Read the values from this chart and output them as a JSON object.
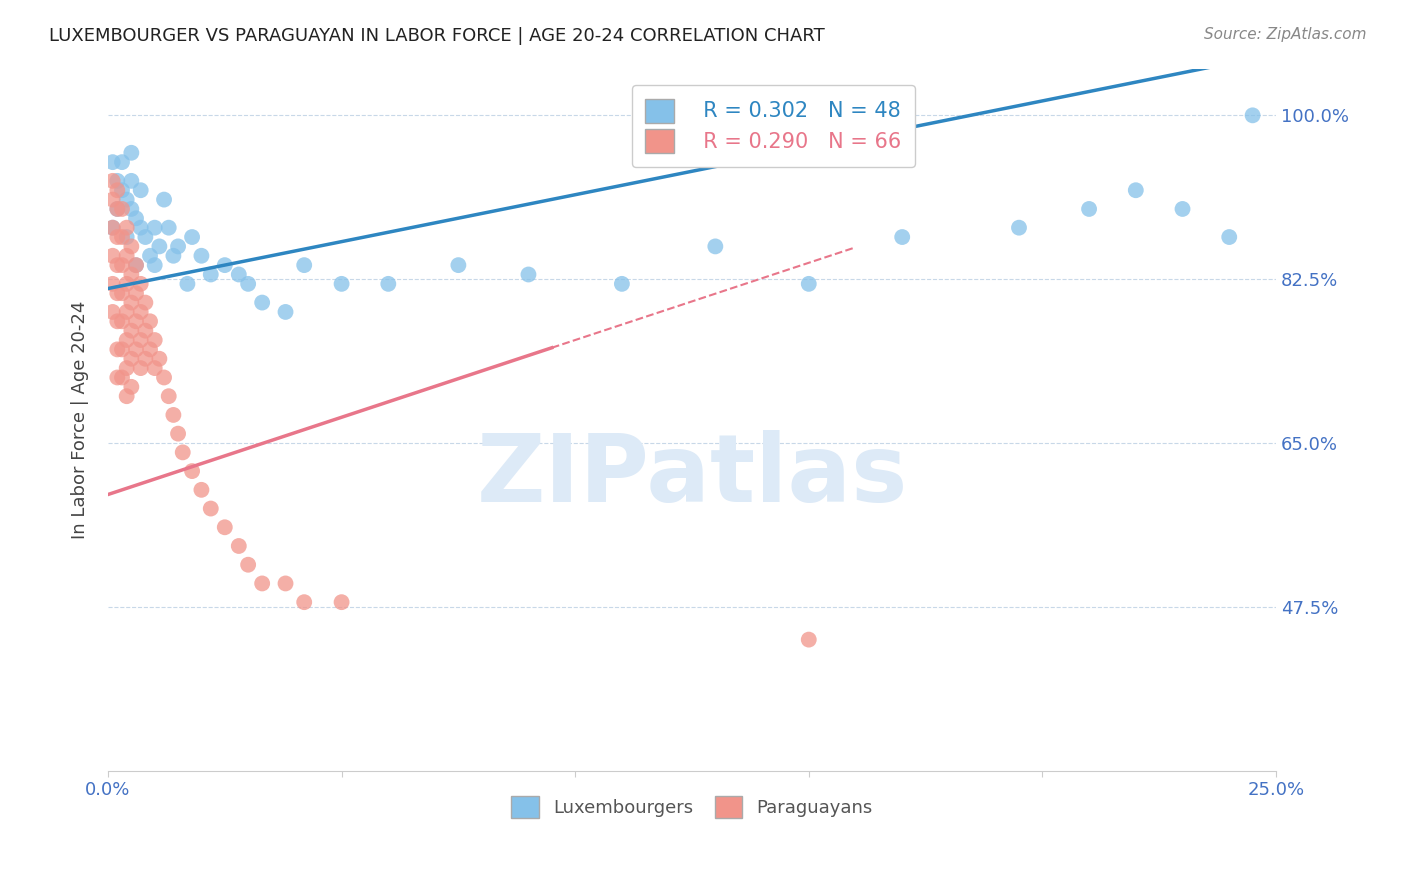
{
  "title": "LUXEMBOURGER VS PARAGUAYAN IN LABOR FORCE | AGE 20-24 CORRELATION CHART",
  "source": "Source: ZipAtlas.com",
  "ylabel": "In Labor Force | Age 20-24",
  "xlim": [
    0.0,
    0.25
  ],
  "ylim": [
    0.3,
    1.05
  ],
  "xtick_positions": [
    0.0,
    0.05,
    0.1,
    0.15,
    0.2,
    0.25
  ],
  "xticklabels": [
    "0.0%",
    "",
    "",
    "",
    "",
    "25.0%"
  ],
  "ytick_positions": [
    0.475,
    0.65,
    0.825,
    1.0
  ],
  "ytick_labels": [
    "47.5%",
    "65.0%",
    "82.5%",
    "100.0%"
  ],
  "blue_R": 0.302,
  "blue_N": 48,
  "pink_R": 0.29,
  "pink_N": 66,
  "blue_color": "#85c1e9",
  "pink_color": "#f1948a",
  "blue_line_color": "#2e86c1",
  "pink_line_color": "#e8768a",
  "grid_color": "#c8d8e8",
  "watermark": "ZIPatlas",
  "watermark_color": "#ddeaf7",
  "background_color": "#ffffff",
  "blue_trendline": [
    0.815,
    1.002
  ],
  "pink_trendline": [
    0.595,
    1.65
  ],
  "blue_scatter_x": [
    0.001,
    0.001,
    0.002,
    0.002,
    0.003,
    0.003,
    0.004,
    0.004,
    0.005,
    0.005,
    0.005,
    0.006,
    0.006,
    0.007,
    0.007,
    0.008,
    0.009,
    0.01,
    0.01,
    0.011,
    0.012,
    0.013,
    0.014,
    0.015,
    0.017,
    0.018,
    0.02,
    0.022,
    0.025,
    0.028,
    0.03,
    0.033,
    0.038,
    0.042,
    0.05,
    0.06,
    0.075,
    0.09,
    0.11,
    0.13,
    0.15,
    0.17,
    0.195,
    0.21,
    0.22,
    0.23,
    0.24,
    0.245
  ],
  "blue_scatter_y": [
    0.88,
    0.95,
    0.9,
    0.93,
    0.95,
    0.92,
    0.91,
    0.87,
    0.93,
    0.9,
    0.96,
    0.89,
    0.84,
    0.88,
    0.92,
    0.87,
    0.85,
    0.88,
    0.84,
    0.86,
    0.91,
    0.88,
    0.85,
    0.86,
    0.82,
    0.87,
    0.85,
    0.83,
    0.84,
    0.83,
    0.82,
    0.8,
    0.79,
    0.84,
    0.82,
    0.82,
    0.84,
    0.83,
    0.82,
    0.86,
    0.82,
    0.87,
    0.88,
    0.9,
    0.92,
    0.9,
    0.87,
    1.0
  ],
  "pink_scatter_x": [
    0.001,
    0.001,
    0.001,
    0.001,
    0.001,
    0.001,
    0.002,
    0.002,
    0.002,
    0.002,
    0.002,
    0.002,
    0.002,
    0.002,
    0.003,
    0.003,
    0.003,
    0.003,
    0.003,
    0.003,
    0.003,
    0.004,
    0.004,
    0.004,
    0.004,
    0.004,
    0.004,
    0.004,
    0.005,
    0.005,
    0.005,
    0.005,
    0.005,
    0.005,
    0.006,
    0.006,
    0.006,
    0.006,
    0.007,
    0.007,
    0.007,
    0.007,
    0.008,
    0.008,
    0.008,
    0.009,
    0.009,
    0.01,
    0.01,
    0.011,
    0.012,
    0.013,
    0.014,
    0.015,
    0.016,
    0.018,
    0.02,
    0.022,
    0.025,
    0.028,
    0.03,
    0.033,
    0.038,
    0.042,
    0.05,
    0.15
  ],
  "pink_scatter_y": [
    0.93,
    0.91,
    0.88,
    0.85,
    0.82,
    0.79,
    0.92,
    0.9,
    0.87,
    0.84,
    0.81,
    0.78,
    0.75,
    0.72,
    0.9,
    0.87,
    0.84,
    0.81,
    0.78,
    0.75,
    0.72,
    0.88,
    0.85,
    0.82,
    0.79,
    0.76,
    0.73,
    0.7,
    0.86,
    0.83,
    0.8,
    0.77,
    0.74,
    0.71,
    0.84,
    0.81,
    0.78,
    0.75,
    0.82,
    0.79,
    0.76,
    0.73,
    0.8,
    0.77,
    0.74,
    0.78,
    0.75,
    0.76,
    0.73,
    0.74,
    0.72,
    0.7,
    0.68,
    0.66,
    0.64,
    0.62,
    0.6,
    0.58,
    0.56,
    0.54,
    0.52,
    0.5,
    0.5,
    0.48,
    0.48,
    0.44
  ]
}
